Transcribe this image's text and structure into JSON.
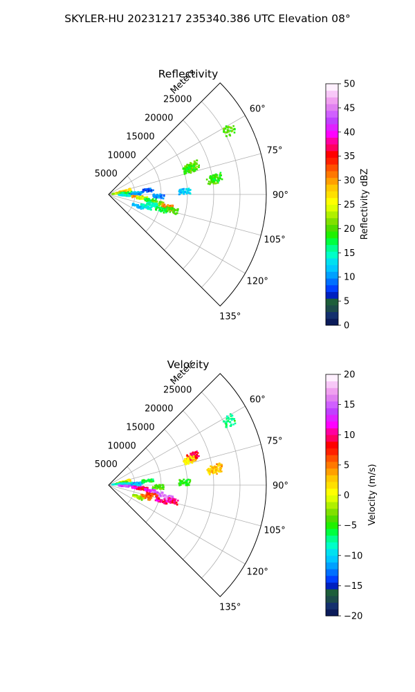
{
  "figure": {
    "suptitle": "SKYLER-HU  20231217  235340.386 UTC Elevation 08°"
  },
  "chart_data": [
    {
      "type": "heatmap",
      "subtype": "polar-sector-ppi",
      "title": "Reflectivity",
      "radial_axis_label": "Meters",
      "theta_range_deg": [
        45,
        135
      ],
      "r_range_m": [
        0,
        30000
      ],
      "radial_ticks": [
        "5000",
        "10000",
        "15000",
        "20000",
        "25000"
      ],
      "radial_tick_values": [
        5000,
        10000,
        15000,
        20000,
        25000
      ],
      "angle_ticks": [
        "60°",
        "75°",
        "90°",
        "105°",
        "120°",
        "135°"
      ],
      "angle_tick_values": [
        60,
        75,
        90,
        105,
        120,
        135
      ],
      "grid": true,
      "colorbar": {
        "label": "Reflectivity dBZ",
        "range": [
          0,
          50
        ],
        "ticks": [
          "0",
          "5",
          "10",
          "15",
          "20",
          "25",
          "30",
          "35",
          "40",
          "45",
          "50"
        ],
        "colors": [
          "#0b1b5a",
          "#14306e",
          "#1c4a4a",
          "#1d5e3a",
          "#0020c0",
          "#0040ff",
          "#0070ff",
          "#00a0ff",
          "#00c8ff",
          "#00e0f0",
          "#00ffc8",
          "#00ff90",
          "#00ff40",
          "#20f000",
          "#50dc00",
          "#80e000",
          "#b0f000",
          "#e0ff00",
          "#ffff00",
          "#ffe000",
          "#ffc800",
          "#ffa000",
          "#ff7800",
          "#ff5000",
          "#ff2000",
          "#ff0000",
          "#ff0060",
          "#ff00a0",
          "#ff00ff",
          "#e020ff",
          "#c040ff",
          "#d060ff",
          "#e080f0",
          "#f0a0f0",
          "#f8c8f8",
          "#fff0ff"
        ]
      },
      "echoes": [
        {
          "az": 72,
          "r": 16500,
          "value": 20
        },
        {
          "az": 71,
          "r": 17000,
          "value": 21
        },
        {
          "az": 73,
          "r": 16000,
          "value": 19
        },
        {
          "az": 82,
          "r": 20000,
          "value": 20
        },
        {
          "az": 81,
          "r": 20800,
          "value": 19
        },
        {
          "az": 62,
          "r": 26000,
          "value": 20
        },
        {
          "az": 77,
          "r": 3200,
          "value": 27
        },
        {
          "az": 80,
          "r": 2500,
          "value": 30
        },
        {
          "az": 83,
          "r": 1800,
          "value": 22
        },
        {
          "az": 85,
          "r": 3500,
          "value": 18
        },
        {
          "az": 87,
          "r": 5500,
          "value": 12
        },
        {
          "az": 90,
          "r": 5000,
          "value": 10
        },
        {
          "az": 93,
          "r": 3000,
          "value": 14
        },
        {
          "az": 95,
          "r": 5500,
          "value": 30
        },
        {
          "az": 96,
          "r": 6500,
          "value": 24
        },
        {
          "az": 98,
          "r": 8000,
          "value": 18
        },
        {
          "az": 100,
          "r": 9500,
          "value": 21
        },
        {
          "az": 102,
          "r": 11500,
          "value": 31
        },
        {
          "az": 104,
          "r": 12500,
          "value": 20
        },
        {
          "az": 103,
          "r": 8500,
          "value": 15
        },
        {
          "az": 108,
          "r": 7500,
          "value": 14
        },
        {
          "az": 106,
          "r": 10500,
          "value": 17
        },
        {
          "az": 112,
          "r": 6000,
          "value": 11
        },
        {
          "az": 88,
          "r": 14500,
          "value": 12
        },
        {
          "az": 92,
          "r": 9500,
          "value": 10
        },
        {
          "az": 84,
          "r": 7500,
          "value": 8
        }
      ]
    },
    {
      "type": "heatmap",
      "subtype": "polar-sector-ppi",
      "title": "Velocity",
      "radial_axis_label": "Meters",
      "theta_range_deg": [
        45,
        135
      ],
      "r_range_m": [
        0,
        30000
      ],
      "radial_ticks": [
        "5000",
        "10000",
        "15000",
        "20000",
        "25000"
      ],
      "radial_tick_values": [
        5000,
        10000,
        15000,
        20000,
        25000
      ],
      "angle_ticks": [
        "60°",
        "75°",
        "90°",
        "105°",
        "120°",
        "135°"
      ],
      "angle_tick_values": [
        60,
        75,
        90,
        105,
        120,
        135
      ],
      "grid": true,
      "colorbar": {
        "label": "Velocity (m/s)",
        "range": [
          -20,
          20
        ],
        "ticks": [
          "−20",
          "−15",
          "−10",
          "−5",
          "0",
          "5",
          "10",
          "15",
          "20"
        ],
        "colors": [
          "#0b1b5a",
          "#14306e",
          "#1c4a4a",
          "#1d5e3a",
          "#0020c0",
          "#0040ff",
          "#0070ff",
          "#00a0ff",
          "#00c8ff",
          "#00e0f0",
          "#00ffc8",
          "#00ff90",
          "#00ff40",
          "#20f000",
          "#50dc00",
          "#80e000",
          "#b0f000",
          "#e0ff00",
          "#ffff00",
          "#ffe000",
          "#ffc800",
          "#ffa000",
          "#ff7800",
          "#ff5000",
          "#ff2000",
          "#ff0000",
          "#ff0060",
          "#ff00a0",
          "#ff00ff",
          "#e020ff",
          "#c040ff",
          "#d060ff",
          "#e080f0",
          "#f0a0f0",
          "#f8c8f8",
          "#fff0ff"
        ]
      },
      "echoes": [
        {
          "az": 72,
          "r": 16500,
          "value": 4
        },
        {
          "az": 71,
          "r": 17000,
          "value": 9
        },
        {
          "az": 73,
          "r": 16000,
          "value": 1
        },
        {
          "az": 82,
          "r": 20000,
          "value": 2
        },
        {
          "az": 81,
          "r": 20800,
          "value": 3
        },
        {
          "az": 62,
          "r": 26000,
          "value": -7
        },
        {
          "az": 77,
          "r": 3200,
          "value": 1
        },
        {
          "az": 80,
          "r": 2500,
          "value": -3
        },
        {
          "az": 83,
          "r": 1800,
          "value": -8
        },
        {
          "az": 85,
          "r": 3500,
          "value": -9
        },
        {
          "az": 87,
          "r": 5500,
          "value": -11
        },
        {
          "az": 90,
          "r": 5000,
          "value": -10
        },
        {
          "az": 93,
          "r": 3000,
          "value": 14
        },
        {
          "az": 95,
          "r": 5500,
          "value": 11
        },
        {
          "az": 96,
          "r": 6500,
          "value": 9
        },
        {
          "az": 98,
          "r": 8000,
          "value": 12
        },
        {
          "az": 100,
          "r": 9500,
          "value": 15
        },
        {
          "az": 102,
          "r": 11500,
          "value": 16
        },
        {
          "az": 104,
          "r": 12500,
          "value": 10
        },
        {
          "az": 103,
          "r": 8500,
          "value": 7
        },
        {
          "az": 108,
          "r": 7500,
          "value": 5
        },
        {
          "az": 106,
          "r": 10500,
          "value": 10
        },
        {
          "az": 112,
          "r": 6000,
          "value": -2
        },
        {
          "az": 88,
          "r": 14500,
          "value": -5
        },
        {
          "az": 92,
          "r": 9500,
          "value": -4
        },
        {
          "az": 84,
          "r": 7500,
          "value": -6
        }
      ]
    }
  ]
}
